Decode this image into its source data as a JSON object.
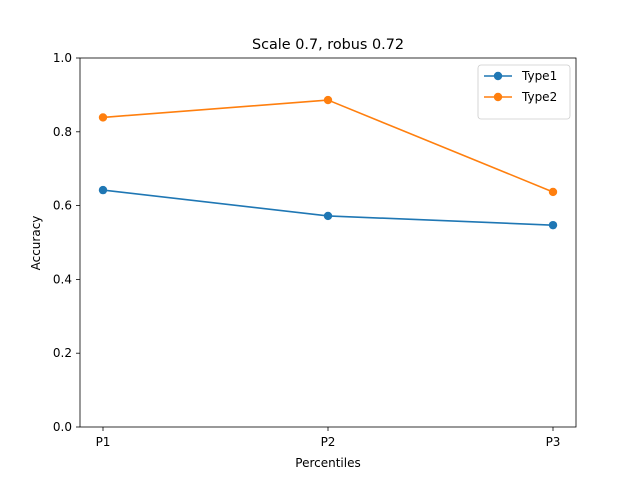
{
  "chart_data": {
    "type": "line",
    "title": "Scale 0.7, robus 0.72",
    "xlabel": "Percentiles",
    "ylabel": "Accuracy",
    "categories": [
      "P1",
      "P2",
      "P3"
    ],
    "ylim": [
      0.0,
      1.0
    ],
    "yticks": [
      "0.0",
      "0.2",
      "0.4",
      "0.6",
      "0.8",
      "1.0"
    ],
    "grid": false,
    "legend_position": "upper right",
    "series": [
      {
        "name": "Type1",
        "color": "#1f77b4",
        "marker": "circle",
        "values": [
          0.642,
          0.572,
          0.547
        ]
      },
      {
        "name": "Type2",
        "color": "#ff7f0e",
        "marker": "circle",
        "values": [
          0.839,
          0.886,
          0.637
        ]
      }
    ]
  }
}
